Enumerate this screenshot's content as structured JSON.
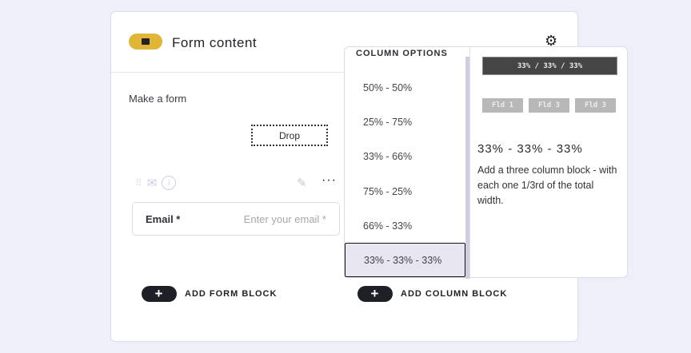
{
  "header": {
    "title": "Form content"
  },
  "body": {
    "intro": "Make a form",
    "drop_label": "Drop"
  },
  "field": {
    "label": "Email *",
    "placeholder": "Enter your email *"
  },
  "actions": {
    "add_form_block": "ADD FORM BLOCK",
    "add_column_block": "ADD COLUMN BLOCK",
    "plus": "+"
  },
  "menu": {
    "heading": "COLUMN OPTIONS",
    "options": [
      "50% - 50%",
      "25% - 75%",
      "33% - 66%",
      "75% - 25%",
      "66% - 33%",
      "33% - 33% - 33%"
    ],
    "selected": "33% - 33% - 33%",
    "preview": {
      "bar": "33% / 33% / 33%",
      "fields": [
        "Fld 1",
        "Fld 3",
        "Fld 3"
      ],
      "title": "33% - 33% - 33%",
      "description": "Add a three column block - with each one 1/3rd of the total width."
    }
  },
  "colors": {
    "badge": "#dfb636",
    "background": "#efeffa",
    "button": "#1f2027"
  }
}
